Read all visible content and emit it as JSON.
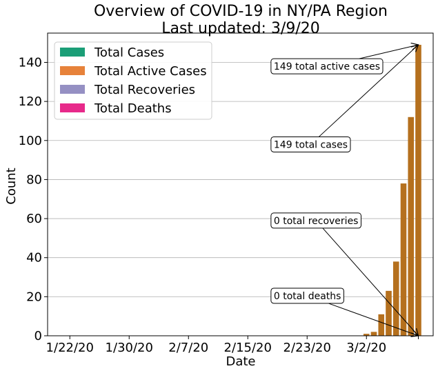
{
  "chart_data": {
    "type": "bar",
    "title_line1": "Overview of COVID-19 in NY/PA Region",
    "title_line2": "Last updated: 3/9/20",
    "xlabel": "Date",
    "ylabel": "Count",
    "ylim": [
      0,
      155
    ],
    "yticks": [
      0,
      20,
      40,
      60,
      80,
      100,
      120,
      140
    ],
    "grid": "horizontal",
    "legend_position": "top-left",
    "x_tick_labels": [
      "1/22/20",
      "1/30/20",
      "2/7/20",
      "2/15/20",
      "2/23/20",
      "3/2/20",
      ""
    ],
    "x_tick_days": [
      0,
      8,
      16,
      24,
      32,
      40,
      47
    ],
    "x_day_range": [
      -3,
      49
    ],
    "series": [
      {
        "name": "Total Cases",
        "color": "#1b9e77"
      },
      {
        "name": "Total Active Cases",
        "color": "#e7823a"
      },
      {
        "name": "Total Recoveries",
        "color": "#9590c3"
      },
      {
        "name": "Total Deaths",
        "color": "#e7298a"
      }
    ],
    "bar_color": "#b5701e",
    "bars": [
      {
        "day": 40,
        "value": 1
      },
      {
        "day": 41,
        "value": 2
      },
      {
        "day": 42,
        "value": 11
      },
      {
        "day": 43,
        "value": 23
      },
      {
        "day": 44,
        "value": 38
      },
      {
        "day": 45,
        "value": 78
      },
      {
        "day": 46,
        "value": 112
      },
      {
        "day": 47,
        "value": 149
      }
    ],
    "annotations": [
      {
        "text": "149 total active cases",
        "text_day": 27.5,
        "text_value": 138,
        "target_day": 47,
        "target_value": 149
      },
      {
        "text": "149 total cases",
        "text_day": 27.5,
        "text_value": 98,
        "target_day": 47,
        "target_value": 149
      },
      {
        "text": "0 total recoveries",
        "text_day": 27.5,
        "text_value": 59,
        "target_day": 47,
        "target_value": 0
      },
      {
        "text": "0 total deaths",
        "text_day": 27.5,
        "text_value": 20.5,
        "target_day": 47,
        "target_value": 0
      }
    ]
  }
}
